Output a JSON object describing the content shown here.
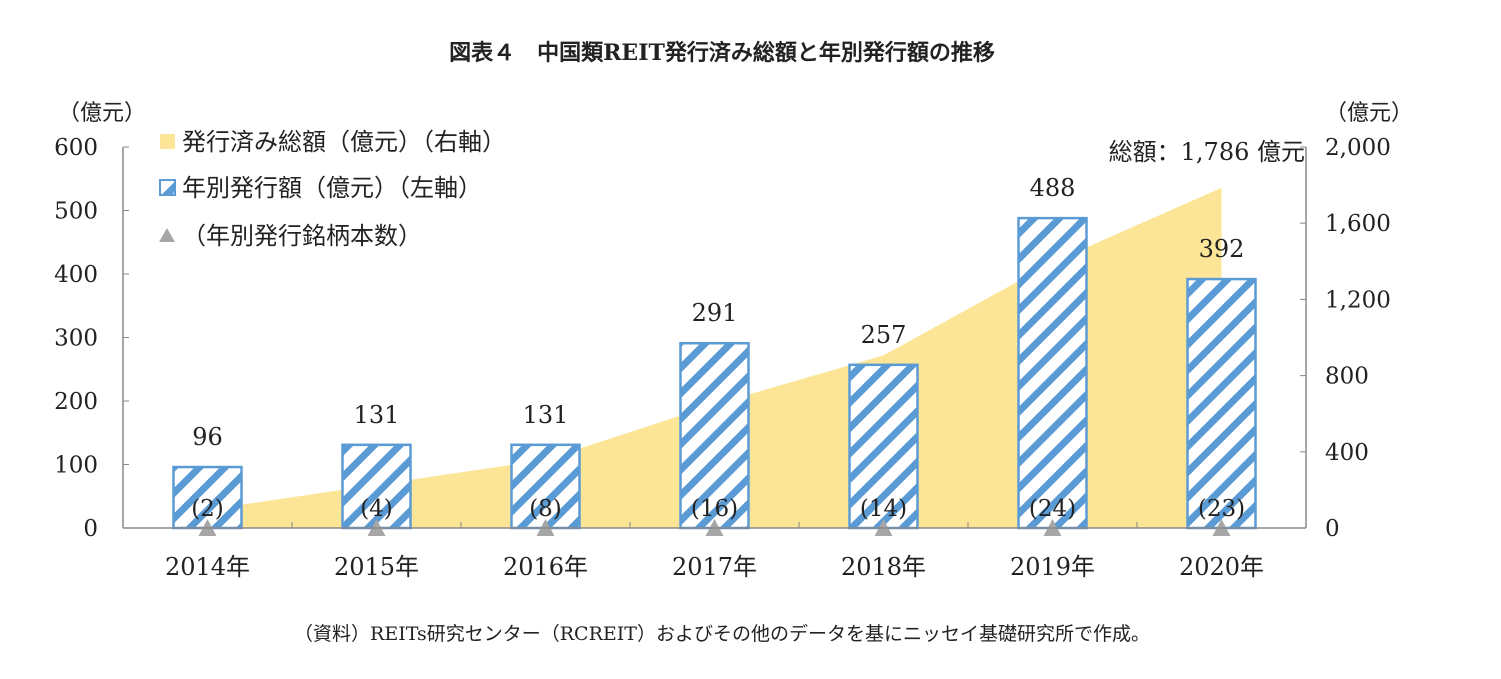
{
  "chart_data": {
    "type": "bar",
    "title": "図表４　中国類REIT発行済み総額と年別発行額の推移",
    "categories": [
      "2014年",
      "2015年",
      "2016年",
      "2017年",
      "2018年",
      "2019年",
      "2020年"
    ],
    "left_axis": {
      "unit": "（億元）",
      "ylim": [
        0,
        600
      ],
      "ticks": [
        "0",
        "100",
        "200",
        "300",
        "400",
        "500",
        "600"
      ]
    },
    "right_axis": {
      "unit": "（億元）",
      "ylim": [
        0,
        2000
      ],
      "ticks": [
        "0",
        "400",
        "800",
        "1,200",
        "1,600",
        "2,000"
      ]
    },
    "series": [
      {
        "name": "発行済み総額（億元）（右軸）",
        "type": "area",
        "axis": "right",
        "color": "#fde597",
        "values": [
          96,
          227,
          358,
          649,
          906,
          1394,
          1786
        ]
      },
      {
        "name": "年別発行額（億元）（左軸）",
        "type": "bar",
        "axis": "left",
        "color": "#5b9bd5",
        "values": [
          96,
          131,
          131,
          291,
          257,
          488,
          392
        ],
        "labels": [
          "96",
          "131",
          "131",
          "291",
          "257",
          "488",
          "392"
        ]
      },
      {
        "name": "（年別発行銘柄本数）",
        "type": "marker",
        "color": "#a6a6a6",
        "values": [
          2,
          4,
          8,
          16,
          14,
          24,
          23
        ],
        "labels": [
          "(2)",
          "(4)",
          "(8)",
          "(16)",
          "(14)",
          "(24)",
          "(23)"
        ]
      }
    ],
    "annotation": "総額：1,786 億元",
    "legend_position": "top-left",
    "grid": false
  },
  "source": "（資料）REITs研究センター（RCREIT）およびその他のデータを基にニッセイ基礎研究所で作成。"
}
